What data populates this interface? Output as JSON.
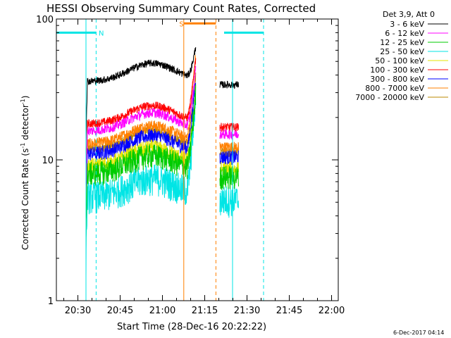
{
  "chart_data": {
    "type": "line",
    "title": "HESSI Observing Summary Count Rates, Corrected",
    "xlabel": "Start Time (28-Dec-16 20:22:22)",
    "ylabel_main": "Corrected Count Rate (s",
    "ylabel_sup1": "-1",
    "ylabel_mid": " detector",
    "ylabel_sup2": "-1",
    "ylabel_end": ")",
    "y_scale": "log",
    "ylim": [
      1,
      100
    ],
    "y_ticks": [
      1,
      10,
      100
    ],
    "y_tick_labels": [
      "1",
      "10",
      "100"
    ],
    "x_unit": "minutes after 20:22:22",
    "xlim_minutes": [
      0,
      100
    ],
    "x_ticks": [
      {
        "label": "20:30",
        "min": 7.63
      },
      {
        "label": "20:45",
        "min": 22.63
      },
      {
        "label": "21:00",
        "min": 37.63
      },
      {
        "label": "21:15",
        "min": 52.63
      },
      {
        "label": "21:30",
        "min": 67.63
      },
      {
        "label": "21:45",
        "min": 82.63
      },
      {
        "label": "22:00",
        "min": 97.63
      }
    ],
    "legend_title": "Det 3,9, Att 0",
    "legend_placement": "top-right outside",
    "series": [
      {
        "name": "3 - 6 keV",
        "color": "#000000",
        "plateau": 36,
        "peak": 65,
        "wide": 0.06
      },
      {
        "name": "6 - 12 keV",
        "color": "#ff00ff",
        "plateau": 16,
        "peak": 45,
        "wide": 0.08
      },
      {
        "name": "12 - 25 keV",
        "color": "#00cc00",
        "plateau": 8,
        "peak": 30,
        "wide": 0.2
      },
      {
        "name": "25 - 50 keV",
        "color": "#00e5e5",
        "plateau": 5.5,
        "peak": 28,
        "wide": 0.26
      },
      {
        "name": "50 - 100 keV",
        "color": "#e5e500",
        "plateau": 9,
        "peak": 32,
        "wide": 0.14
      },
      {
        "name": "100 - 300 keV",
        "color": "#ff0000",
        "plateau": 18,
        "peak": 55,
        "wide": 0.07
      },
      {
        "name": "300 - 800 keV",
        "color": "#0000ff",
        "plateau": 11,
        "peak": 38,
        "wide": 0.12
      },
      {
        "name": "800 - 7000 keV",
        "color": "#ff8000",
        "plateau": 13,
        "peak": 58,
        "wide": 0.09
      },
      {
        "name": "7000 - 20000 keV",
        "color": "#bb8800",
        "plateau": 12,
        "peak": 40,
        "wide": 0.08
      }
    ],
    "data_segments_minutes": [
      [
        10.5,
        49.5
      ],
      [
        58,
        64.7
      ]
    ],
    "flags": [
      {
        "label": "N",
        "color": "#00e5e5",
        "level": 80,
        "intervals": [
          [
            0,
            14.1
          ],
          [
            59.5,
            73.5
          ]
        ],
        "label_at": 15.0
      },
      {
        "label": "S",
        "color": "#ff8000",
        "level": 93,
        "intervals": [
          [
            45.2,
            56.6
          ]
        ],
        "label_at": 43.6
      }
    ],
    "vlines": [
      {
        "min": 10.5,
        "color": "#00e5e5",
        "style": "solid"
      },
      {
        "min": 14.1,
        "color": "#00e5e5",
        "style": "dashed"
      },
      {
        "min": 45.2,
        "color": "#ff8000",
        "style": "solid"
      },
      {
        "min": 56.6,
        "color": "#ff8000",
        "style": "dashed"
      },
      {
        "min": 62.5,
        "color": "#00e5e5",
        "style": "solid"
      },
      {
        "min": 73.5,
        "color": "#00e5e5",
        "style": "dashed"
      }
    ],
    "footer": "6-Dec-2017 04:14"
  }
}
